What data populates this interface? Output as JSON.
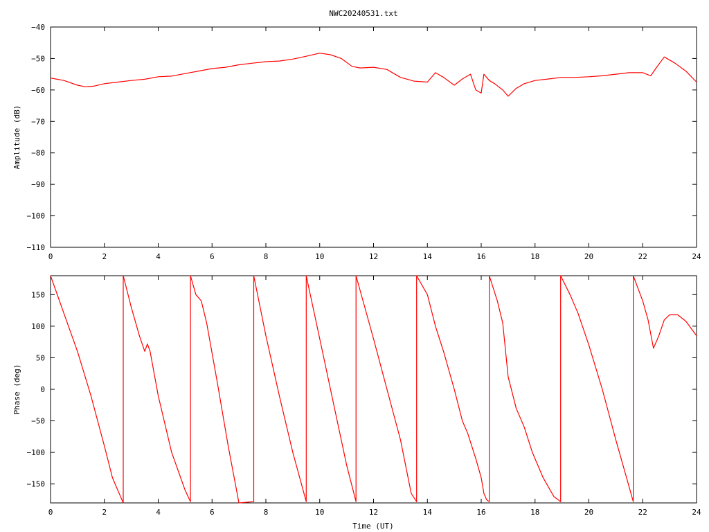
{
  "title": "NWC20240531.txt",
  "colors": {
    "series": "#ff0000",
    "axis": "#000000",
    "background": "#ffffff"
  },
  "chart_data": [
    {
      "type": "line",
      "ylabel": "Amplitude (dB)",
      "xlabel": "",
      "xlim": [
        0,
        24
      ],
      "ylim": [
        -110,
        -40
      ],
      "x_ticks": [
        0,
        2,
        4,
        6,
        8,
        10,
        12,
        14,
        16,
        18,
        20,
        22,
        24
      ],
      "y_ticks": [
        -40,
        -50,
        -60,
        -70,
        -80,
        -90,
        -100,
        -110
      ],
      "grid": false,
      "series": [
        {
          "x": [
            0,
            0.5,
            1.0,
            1.3,
            1.6,
            2.0,
            2.5,
            3.0,
            3.5,
            4.0,
            4.5,
            5.0,
            5.5,
            6.0,
            6.5,
            7.0,
            7.5,
            8.0,
            8.5,
            9.0,
            9.5,
            10.0,
            10.4,
            10.8,
            11.2,
            11.5,
            12.0,
            12.5,
            13.0,
            13.5,
            14.0,
            14.3,
            14.6,
            15.0,
            15.3,
            15.6,
            15.8,
            16.0,
            16.1,
            16.3,
            16.5,
            16.8,
            17.0,
            17.3,
            17.6,
            18.0,
            18.5,
            19.0,
            19.5,
            20.0,
            20.5,
            21.0,
            21.5,
            22.0,
            22.3,
            22.5,
            22.8,
            23.2,
            23.6,
            24.0
          ],
          "y": [
            -56.2,
            -57.0,
            -58.5,
            -59.0,
            -58.8,
            -58.0,
            -57.5,
            -57.0,
            -56.6,
            -55.8,
            -55.6,
            -54.8,
            -54.0,
            -53.2,
            -52.8,
            -52.0,
            -51.5,
            -51.0,
            -50.8,
            -50.2,
            -49.3,
            -48.3,
            -48.8,
            -50.0,
            -52.5,
            -53.0,
            -52.8,
            -53.5,
            -56.0,
            -57.2,
            -57.5,
            -54.5,
            -56.0,
            -58.5,
            -56.5,
            -55.0,
            -60.0,
            -61.0,
            -55.0,
            -57.0,
            -58.0,
            -60.0,
            -62.0,
            -59.5,
            -58.0,
            -57.0,
            -56.5,
            -56.0,
            -56.0,
            -55.8,
            -55.5,
            -55.0,
            -54.5,
            -54.5,
            -55.5,
            -53.0,
            -49.5,
            -51.5,
            -54.0,
            -57.5
          ]
        }
      ]
    },
    {
      "type": "line",
      "ylabel": "Phase (deg)",
      "xlabel": "Time (UT)",
      "xlim": [
        0,
        24
      ],
      "ylim": [
        -180,
        180
      ],
      "x_ticks": [
        0,
        2,
        4,
        6,
        8,
        10,
        12,
        14,
        16,
        18,
        20,
        22,
        24
      ],
      "y_ticks": [
        150,
        100,
        50,
        0,
        -50,
        -100,
        -150
      ],
      "grid": false,
      "series": [
        {
          "x": [
            0,
            0.5,
            1.0,
            1.5,
            2.0,
            2.3,
            2.55,
            2.7,
            2.7,
            3.0,
            3.3,
            3.5,
            3.6,
            3.7,
            4.0,
            4.5,
            5.0,
            5.2,
            5.2,
            5.4,
            5.6,
            5.8,
            6.2,
            6.6,
            7.0,
            7.55,
            7.55,
            8.0,
            8.5,
            9.0,
            9.5,
            9.5,
            10.0,
            10.5,
            11.0,
            11.35,
            11.35,
            12.0,
            12.5,
            13.0,
            13.4,
            13.6,
            13.6,
            14.0,
            14.3,
            14.6,
            15.0,
            15.3,
            15.5,
            15.8,
            16.0,
            16.1,
            16.2,
            16.3,
            16.3,
            16.6,
            16.8,
            17.0,
            17.3,
            17.6,
            17.9,
            18.3,
            18.7,
            18.95,
            18.95,
            19.3,
            19.6,
            20.0,
            20.5,
            21.0,
            21.4,
            21.65,
            21.65,
            22.0,
            22.2,
            22.4,
            22.6,
            22.8,
            23.0,
            23.3,
            23.6,
            24.0
          ],
          "y": [
            180,
            120,
            60,
            -10,
            -90,
            -140,
            -165,
            -180,
            180,
            130,
            85,
            60,
            72,
            60,
            -10,
            -100,
            -160,
            -178,
            180,
            150,
            140,
            105,
            10,
            -90,
            -180,
            -178,
            180,
            85,
            -10,
            -100,
            -178,
            180,
            80,
            -20,
            -120,
            -178,
            180,
            80,
            0,
            -80,
            -165,
            -178,
            180,
            150,
            100,
            60,
            0,
            -50,
            -70,
            -110,
            -140,
            -165,
            -175,
            -178,
            180,
            140,
            105,
            20,
            -30,
            -60,
            -100,
            -140,
            -170,
            -178,
            180,
            150,
            120,
            70,
            0,
            -80,
            -140,
            -178,
            180,
            140,
            110,
            65,
            85,
            110,
            118,
            118,
            108,
            85
          ]
        }
      ]
    }
  ]
}
